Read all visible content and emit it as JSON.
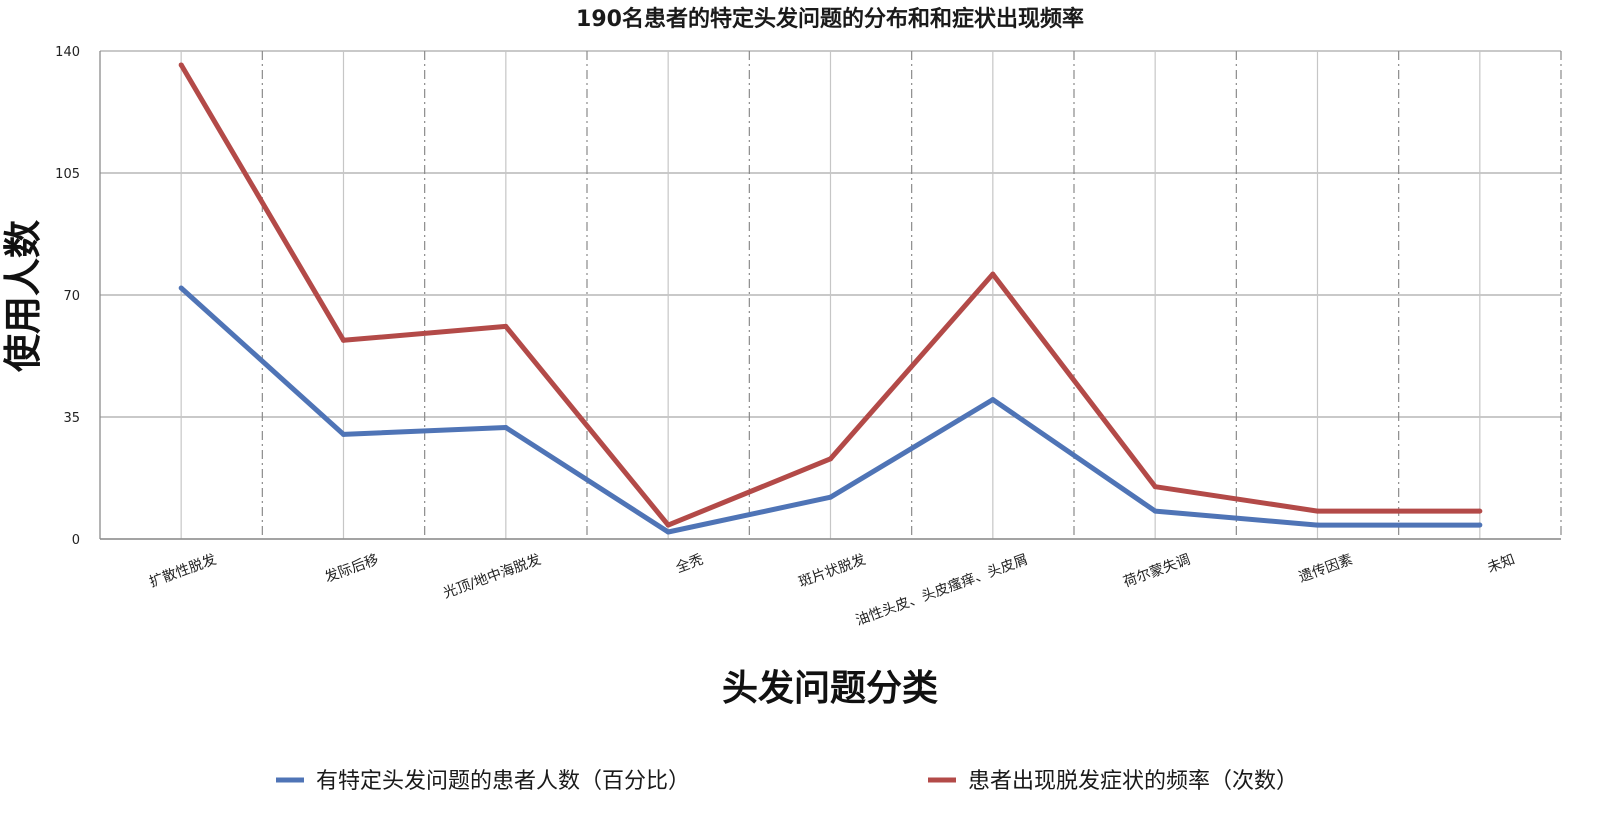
{
  "chart_data": {
    "type": "line",
    "title": "190名患者的特定头发问题的分布和和症状出现频率",
    "xlabel": "头发问题分类",
    "ylabel": "使用人数",
    "ylim": [
      0,
      140
    ],
    "yticks": [
      "0",
      "35",
      "70",
      "105",
      "140"
    ],
    "grid": true,
    "legend_position": "bottom",
    "categories": [
      "扩散性脱发",
      "发际后移",
      "光顶/地中海脱发",
      "全秃",
      "斑片状脱发",
      "油性头皮、头皮瘙痒、头皮屑",
      "荷尔蒙失调",
      "遗传因素",
      "未知"
    ],
    "series": [
      {
        "name": "有特定头发问题的患者人数（百分比）",
        "color": "#4f74b6",
        "values": [
          72,
          30,
          32,
          2,
          12,
          40,
          8,
          4,
          4
        ]
      },
      {
        "name": "患者出现脱发症状的频率（次数）",
        "color": "#b34a48",
        "values": [
          136,
          57,
          61,
          4,
          23,
          76,
          15,
          8,
          8
        ]
      }
    ]
  }
}
